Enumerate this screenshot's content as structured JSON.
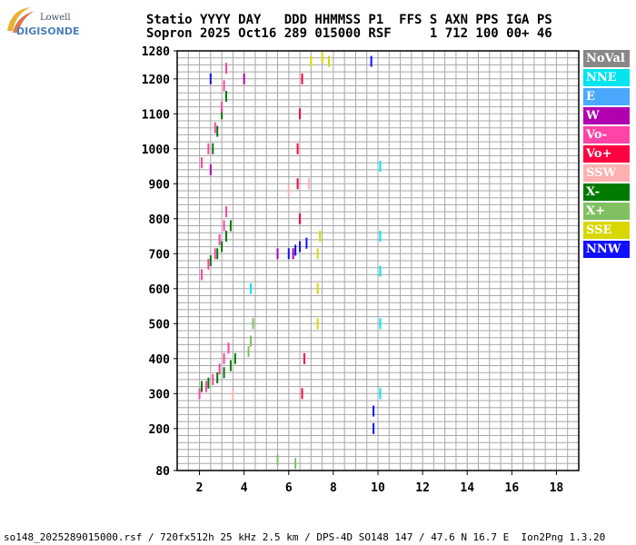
{
  "logo": {
    "top": "Lowell",
    "bottom": "DIGISONDE"
  },
  "header": {
    "line1": "Statio YYYY DAY   DDD HHMMSS P1  FFS S AXN PPS IGA PS",
    "line2": "Sopron 2025 Oct16 289 015000 RSF     1 712 100 00+ 46"
  },
  "legend": [
    {
      "label": "NoVal",
      "color": "#888888"
    },
    {
      "label": "NNE",
      "color": "#00e5ee"
    },
    {
      "label": "E",
      "color": "#4aa8ff"
    },
    {
      "label": "W",
      "color": "#b000b0"
    },
    {
      "label": "Vo-",
      "color": "#ff44a8"
    },
    {
      "label": "Vo+",
      "color": "#ff0040"
    },
    {
      "label": "SSW",
      "color": "#ffb0b0"
    },
    {
      "label": "X-",
      "color": "#007a00"
    },
    {
      "label": "X+",
      "color": "#80c060"
    },
    {
      "label": "SSE",
      "color": "#d8d800"
    },
    {
      "label": "NNW",
      "color": "#1010ff"
    }
  ],
  "footer": "so148_2025289015000.rsf / 720fx512h 25 kHz 2.5 km / DPS-4D SO148 147 / 47.6 N 16.7 E  Ion2Png 1.3.20",
  "chart_data": {
    "type": "scatter",
    "xlim": [
      1,
      19
    ],
    "ylim": [
      80,
      1280
    ],
    "x_ticks": [
      2,
      4,
      6,
      8,
      10,
      12,
      14,
      16,
      18
    ],
    "y_ticks": [
      80,
      200,
      300,
      400,
      500,
      600,
      700,
      800,
      900,
      1000,
      1100,
      1200,
      1280
    ],
    "grid": true,
    "legend_position": "right",
    "series": [
      {
        "name": "X-",
        "color": "#007a00",
        "points": [
          [
            2.1,
            320
          ],
          [
            2.4,
            330
          ],
          [
            2.8,
            345
          ],
          [
            3.1,
            360
          ],
          [
            3.4,
            380
          ],
          [
            3.6,
            400
          ],
          [
            2.5,
            680
          ],
          [
            2.8,
            700
          ],
          [
            3.0,
            720
          ],
          [
            3.2,
            750
          ],
          [
            3.4,
            780
          ],
          [
            2.6,
            1000
          ],
          [
            2.8,
            1050
          ],
          [
            3.0,
            1100
          ],
          [
            3.2,
            1150
          ]
        ]
      },
      {
        "name": "Vo-",
        "color": "#ff44a8",
        "points": [
          [
            2.0,
            300
          ],
          [
            2.3,
            320
          ],
          [
            2.6,
            340
          ],
          [
            2.9,
            370
          ],
          [
            3.1,
            400
          ],
          [
            3.3,
            430
          ],
          [
            2.1,
            640
          ],
          [
            2.4,
            670
          ],
          [
            2.7,
            700
          ],
          [
            2.9,
            740
          ],
          [
            3.1,
            780
          ],
          [
            3.2,
            820
          ],
          [
            2.1,
            960
          ],
          [
            2.4,
            1000
          ],
          [
            2.7,
            1060
          ],
          [
            3.0,
            1120
          ],
          [
            3.1,
            1180
          ],
          [
            3.2,
            1230
          ]
        ]
      },
      {
        "name": "Vo+",
        "color": "#ff0040",
        "points": [
          [
            6.4,
            1000
          ],
          [
            6.5,
            1100
          ],
          [
            6.6,
            1200
          ],
          [
            6.7,
            400
          ],
          [
            6.6,
            300
          ],
          [
            6.5,
            800
          ],
          [
            6.4,
            900
          ]
        ]
      },
      {
        "name": "NNE",
        "color": "#00e5ee",
        "points": [
          [
            10.1,
            300
          ],
          [
            10.1,
            500
          ],
          [
            10.1,
            650
          ],
          [
            10.1,
            750
          ],
          [
            10.1,
            950
          ],
          [
            4.4,
            500
          ],
          [
            4.3,
            600
          ]
        ]
      },
      {
        "name": "SSE",
        "color": "#d8d800",
        "points": [
          [
            7.3,
            500
          ],
          [
            7.3,
            600
          ],
          [
            7.3,
            700
          ],
          [
            7.4,
            750
          ],
          [
            7.0,
            1250
          ],
          [
            7.5,
            1260
          ],
          [
            7.8,
            1250
          ]
        ]
      },
      {
        "name": "NNW",
        "color": "#1010ff",
        "points": [
          [
            6.0,
            700
          ],
          [
            6.3,
            710
          ],
          [
            6.5,
            720
          ],
          [
            6.8,
            730
          ],
          [
            9.8,
            200
          ],
          [
            9.8,
            250
          ],
          [
            2.5,
            1200
          ],
          [
            9.7,
            1250
          ]
        ]
      },
      {
        "name": "W",
        "color": "#b000b0",
        "points": [
          [
            2.5,
            940
          ],
          [
            4.0,
            1200
          ],
          [
            5.5,
            700
          ],
          [
            6.2,
            700
          ]
        ]
      },
      {
        "name": "X+",
        "color": "#80c060",
        "points": [
          [
            4.3,
            450
          ],
          [
            4.4,
            500
          ],
          [
            4.2,
            420
          ],
          [
            5.5,
            110
          ],
          [
            6.3,
            100
          ]
        ]
      },
      {
        "name": "SSW",
        "color": "#ffb0b0",
        "points": [
          [
            6.9,
            900
          ],
          [
            6.0,
            880
          ],
          [
            3.5,
            300
          ]
        ]
      }
    ]
  }
}
